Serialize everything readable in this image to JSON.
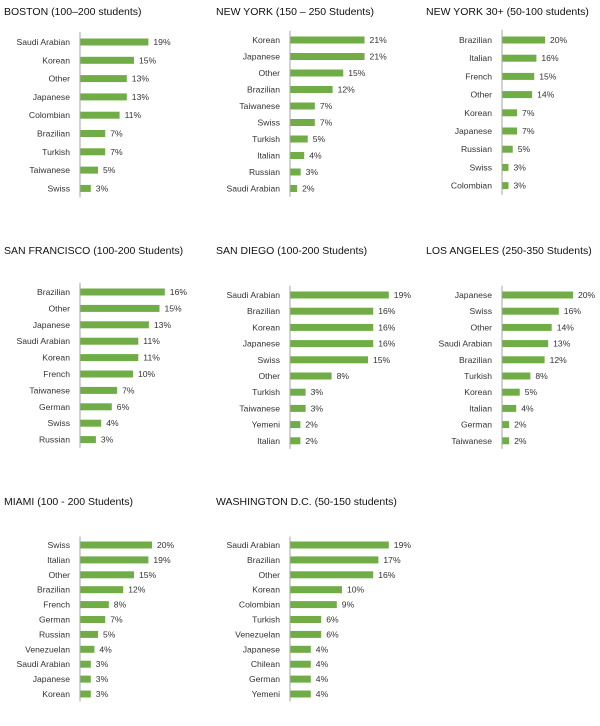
{
  "bar_color": "#70ad47",
  "axis_color": "#a6a6a6",
  "chart_data": [
    {
      "type": "bar",
      "orientation": "horizontal",
      "title": "BOSTON (100–200 students)",
      "categories": [
        "Saudi Arabian",
        "Korean",
        "Other",
        "Japanese",
        "Colombian",
        "Brazilian",
        "Turkish",
        "Taiwanese",
        "Swiss"
      ],
      "values": [
        19,
        15,
        13,
        13,
        11,
        7,
        7,
        5,
        3
      ],
      "value_labels": [
        "19%",
        "15%",
        "13%",
        "13%",
        "11%",
        "7%",
        "7%",
        "5%",
        "3%"
      ],
      "unit": "%"
    },
    {
      "type": "bar",
      "orientation": "horizontal",
      "title": "NEW YORK (150 – 250 Students)",
      "categories": [
        "Korean",
        "Japanese",
        "Other",
        "Brazilian",
        "Taiwanese",
        "Swiss",
        "Turkish",
        "Italian",
        "Russian",
        "Saudi Arabian"
      ],
      "values": [
        21,
        21,
        15,
        12,
        7,
        7,
        5,
        4,
        3,
        2
      ],
      "value_labels": [
        "21%",
        "21%",
        "15%",
        "12%",
        "7%",
        "7%",
        "5%",
        "4%",
        "3%",
        "2%"
      ],
      "unit": "%"
    },
    {
      "type": "bar",
      "orientation": "horizontal",
      "title": "NEW YORK 30+ (50-100 students)",
      "categories": [
        "Brazilian",
        "Italian",
        "French",
        "Other",
        "Korean",
        "Japanese",
        "Russian",
        "Swiss",
        "Colombian"
      ],
      "values": [
        20,
        16,
        15,
        14,
        7,
        7,
        5,
        3,
        3
      ],
      "value_labels": [
        "20%",
        "16%",
        "15%",
        "14%",
        "7%",
        "7%",
        "5%",
        "3%",
        "3%"
      ],
      "unit": "%"
    },
    {
      "type": "bar",
      "orientation": "horizontal",
      "title": "SAN FRANCISCO (100-200 Students)",
      "categories": [
        "Brazilian",
        "Other",
        "Japanese",
        "Saudi Arabian",
        "Korean",
        "French",
        "Taiwanese",
        "German",
        "Swiss",
        "Russian"
      ],
      "values": [
        16,
        15,
        13,
        11,
        11,
        10,
        7,
        6,
        4,
        3
      ],
      "value_labels": [
        "16%",
        "15%",
        "13%",
        "11%",
        "11%",
        "10%",
        "7%",
        "6%",
        "4%",
        "3%"
      ],
      "unit": "%"
    },
    {
      "type": "bar",
      "orientation": "horizontal",
      "title": "SAN DIEGO (100-200 Students)",
      "categories": [
        "Saudi Arabian",
        "Brazilian",
        "Korean",
        "Japanese",
        "Swiss",
        "Other",
        "Turkish",
        "Taiwanese",
        "Yemeni",
        "Italian"
      ],
      "values": [
        19,
        16,
        16,
        16,
        15,
        8,
        3,
        3,
        2,
        2
      ],
      "value_labels": [
        "19%",
        "16%",
        "16%",
        "16%",
        "15%",
        "8%",
        "3%",
        "3%",
        "2%",
        "2%"
      ],
      "unit": "%"
    },
    {
      "type": "bar",
      "orientation": "horizontal",
      "title": "LOS ANGELES (250-350 Students)",
      "categories": [
        "Japanese",
        "Swiss",
        "Other",
        "Saudi Arabian",
        "Brazilian",
        "Turkish",
        "Korean",
        "Italian",
        "German",
        "Taiwanese"
      ],
      "values": [
        20,
        16,
        14,
        13,
        12,
        8,
        5,
        4,
        2,
        2
      ],
      "value_labels": [
        "20%",
        "16%",
        "14%",
        "13%",
        "12%",
        "8%",
        "5%",
        "4%",
        "2%",
        "2%"
      ],
      "unit": "%"
    },
    {
      "type": "bar",
      "orientation": "horizontal",
      "title": "MIAMI (100 - 200 Students)",
      "categories": [
        "Swiss",
        "Italian",
        "Other",
        "Brazilian",
        "French",
        "German",
        "Russian",
        "Venezuelan",
        "Saudi Arabian",
        "Japanese",
        "Korean"
      ],
      "values": [
        20,
        19,
        15,
        12,
        8,
        7,
        5,
        4,
        3,
        3,
        3
      ],
      "value_labels": [
        "20%",
        "19%",
        "15%",
        "12%",
        "8%",
        "7%",
        "5%",
        "4%",
        "3%",
        "3%",
        "3%"
      ],
      "unit": "%"
    },
    {
      "type": "bar",
      "orientation": "horizontal",
      "title": "WASHINGTON D.C. (50-150 students)",
      "categories": [
        "Saudi Arabian",
        "Brazilian",
        "Other",
        "Korean",
        "Colombian",
        "Turkish",
        "Venezuelan",
        "Japanese",
        "Chilean",
        "German",
        "Yemeni"
      ],
      "values": [
        19,
        17,
        16,
        10,
        9,
        6,
        6,
        4,
        4,
        4,
        4
      ],
      "value_labels": [
        "19%",
        "17%",
        "16%",
        "10%",
        "9%",
        "6%",
        "6%",
        "4%",
        "4%",
        "4%",
        "4%"
      ],
      "unit": "%"
    }
  ]
}
